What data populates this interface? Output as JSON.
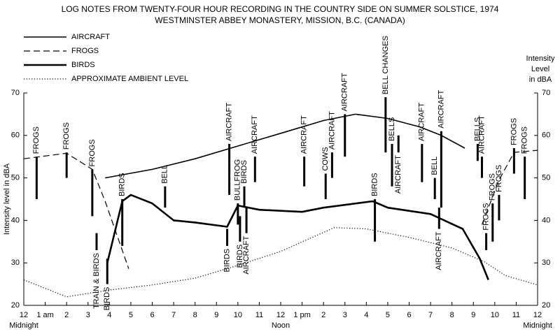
{
  "chart_data": {
    "type": "line",
    "title": "LOG NOTES FROM TWENTY-FOUR HOUR RECORDING IN THE COUNTRY SIDE ON SUMMER SOLSTICE, 1974",
    "subtitle": "WESTMINSTER ABBEY MONASTERY, MISSION, B.C. (CANADA)",
    "y_label": "Intensity level in dBA",
    "y2_label": [
      "Intensity",
      "Level",
      "in dBA"
    ],
    "xlim": [
      0,
      24
    ],
    "xticks": [
      {
        "value": 0,
        "label": "12"
      },
      {
        "value": 1,
        "label": "1 am"
      },
      2,
      3,
      4,
      5,
      6,
      7,
      8,
      9,
      10,
      11,
      12,
      {
        "value": 13,
        "label": "1 pm"
      },
      {
        "value": 14,
        "label": "2"
      },
      {
        "value": 15,
        "label": "3"
      },
      {
        "value": 16,
        "label": "4"
      },
      {
        "value": 17,
        "label": "5"
      },
      {
        "value": 18,
        "label": "6"
      },
      {
        "value": 19,
        "label": "7"
      },
      {
        "value": 20,
        "label": "8"
      },
      {
        "value": 21,
        "label": "9"
      },
      {
        "value": 22,
        "label": "10"
      },
      {
        "value": 23,
        "label": "11"
      },
      {
        "value": 24,
        "label": "12"
      }
    ],
    "x_sublabels": [
      {
        "value": 0,
        "label": "Midnight"
      },
      {
        "value": 12,
        "label": "Noon"
      },
      {
        "value": 24,
        "label": "Midnight"
      }
    ],
    "ylim": [
      20,
      70
    ],
    "yticks": [
      20,
      30,
      40,
      50,
      60,
      70
    ],
    "y2lim": [
      20,
      70
    ],
    "y2ticks": [
      20,
      30,
      40,
      50,
      60,
      70
    ],
    "series": [
      {
        "name": "AIRCRAFT",
        "color": "#000000",
        "style": "zigzag",
        "x": [
          3.8,
          6,
          8,
          10,
          12,
          14,
          15.5,
          17,
          18.5,
          19.5,
          20.6
        ],
        "values": [
          50,
          52,
          54.5,
          57.5,
          60.5,
          63.5,
          65,
          64,
          62,
          60,
          57
        ]
      },
      {
        "name": "FROGS",
        "color": "#000000",
        "style": "dashed",
        "x": [
          0,
          2,
          3.2,
          3.8,
          4.9,
          21,
          21.4,
          22.2,
          22.9,
          24
        ],
        "values": [
          54.5,
          55.8,
          52,
          44.5,
          28.6,
          null,
          39,
          49.5,
          56,
          56.5
        ]
      },
      {
        "name": "BIRDS",
        "color": "#000000",
        "style": "jagged",
        "x": [
          3.9,
          4.6,
          5,
          6,
          7,
          8,
          9.5,
          10,
          11,
          13,
          14,
          16.3,
          17,
          19,
          20.5,
          21.3,
          21.7
        ],
        "values": [
          30,
          44.5,
          46,
          44,
          40,
          39.5,
          38.5,
          43.5,
          42.5,
          42,
          43,
          44.5,
          43,
          41.5,
          38,
          31,
          26
        ]
      },
      {
        "name": "APPROXIMATE AMBIENT LEVEL",
        "color": "#000000",
        "style": "dotted",
        "x": [
          0,
          2,
          4,
          6,
          8,
          10,
          12,
          14.5,
          16,
          18,
          20,
          21.5,
          22.5,
          24
        ],
        "values": [
          26,
          22,
          23.6,
          24.8,
          26.4,
          29.4,
          32.7,
          38.3,
          38,
          36,
          33.5,
          30.3,
          27,
          24.8
        ]
      }
    ],
    "events": [
      {
        "label": "FROGS",
        "x": 0.6,
        "top": 55,
        "bottom": 45
      },
      {
        "label": "FROGS",
        "x": 2,
        "top": 56,
        "bottom": 50
      },
      {
        "label": "FROGS",
        "x": 3.2,
        "top": 52,
        "bottom": 41
      },
      {
        "label": "TRAIN & BIRDS",
        "x": 3.4,
        "top": 37,
        "bottom": 33
      },
      {
        "label": "BIRDS",
        "x": 3.9,
        "top": 31,
        "bottom": 25
      },
      {
        "label": "BIRDS",
        "x": 4.6,
        "top": 45,
        "bottom": 34
      },
      {
        "label": "BELL",
        "x": 6.6,
        "top": 48,
        "bottom": 43
      },
      {
        "label": "AIRCRAFT",
        "x": 9.6,
        "top": 58,
        "bottom": 46
      },
      {
        "label": "BIRDS",
        "x": 9.5,
        "top": 38,
        "bottom": 34
      },
      {
        "label": "BULLFROG",
        "x": 10,
        "top": 44,
        "bottom": 39
      },
      {
        "label": "BIRDS",
        "x": 10.3,
        "top": 48,
        "bottom": 43
      },
      {
        "label": "BIRDS",
        "x": 10.1,
        "top": 41,
        "bottom": 35
      },
      {
        "label": "AIRCRAFT",
        "x": 10.4,
        "top": 43,
        "bottom": 37
      },
      {
        "label": "AIRCRAFT",
        "x": 10.8,
        "top": 55,
        "bottom": 49
      },
      {
        "label": "AIRCRAFT",
        "x": 13.1,
        "top": 55,
        "bottom": 48
      },
      {
        "label": "COWS",
        "x": 14.1,
        "top": 51,
        "bottom": 45
      },
      {
        "label": "AIRCRAFT",
        "x": 14.4,
        "top": 56,
        "bottom": 50
      },
      {
        "label": "AIRCRAFT",
        "x": 15,
        "top": 65,
        "bottom": 55
      },
      {
        "label": "BIRDS",
        "x": 16.4,
        "top": 45,
        "bottom": 35
      },
      {
        "label": "BELL CHANGES",
        "x": 16.9,
        "top": 69,
        "bottom": 56
      },
      {
        "label": "BELLS",
        "x": 17.2,
        "top": 58,
        "bottom": 48
      },
      {
        "label": "AIRCRAFT",
        "x": 17.5,
        "top": 60,
        "bottom": 56
      },
      {
        "label": "AIRCRAFT",
        "x": 18.6,
        "top": 58,
        "bottom": 49
      },
      {
        "label": "BELL",
        "x": 19.2,
        "top": 50,
        "bottom": 45
      },
      {
        "label": "AIRCRAFT",
        "x": 19.5,
        "top": 61,
        "bottom": 43
      },
      {
        "label": "AIRCRAFT",
        "x": 19.4,
        "top": 43,
        "bottom": 38
      },
      {
        "label": "BELLS",
        "x": 21.2,
        "top": 58,
        "bottom": 54
      },
      {
        "label": "AIRCRAFT",
        "x": 21.4,
        "top": 55,
        "bottom": 50
      },
      {
        "label": "FROGS",
        "x": 21.6,
        "top": 37,
        "bottom": 33
      },
      {
        "label": "FROGS",
        "x": 21.9,
        "top": 44,
        "bottom": 35
      },
      {
        "label": "FROGS",
        "x": 22.2,
        "top": 46,
        "bottom": 40
      },
      {
        "label": "FROGS",
        "x": 22.9,
        "top": 57,
        "bottom": 51
      },
      {
        "label": "FROGS",
        "x": 23.4,
        "top": 55,
        "bottom": 45
      }
    ]
  }
}
